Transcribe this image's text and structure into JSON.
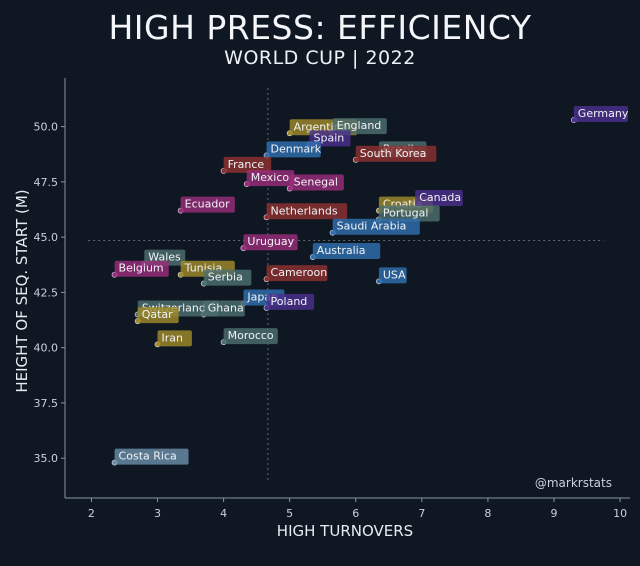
{
  "title": "HIGH PRESS: EFFICIENCY",
  "subtitle": "WORLD CUP | 2022",
  "credit": "@markrstats",
  "chart_data": {
    "type": "scatter",
    "xlabel": "HIGH TURNOVERS",
    "ylabel": "HEIGHT OF SEQ. START (M)",
    "xlim": [
      1.6,
      10.15
    ],
    "ylim": [
      33.2,
      52.2
    ],
    "xticks": [
      2,
      3,
      4,
      5,
      6,
      7,
      8,
      9,
      10
    ],
    "yticks": [
      35.0,
      37.5,
      40.0,
      42.5,
      45.0,
      47.5,
      50.0
    ],
    "ytick_labels": [
      "35.0",
      "37.5",
      "40.0",
      "42.5",
      "45.0",
      "47.5",
      "50.0"
    ],
    "reference_lines": {
      "x": 4.67,
      "y": 44.85
    },
    "grid": false,
    "points": [
      {
        "team": "Germany",
        "x": 9.3,
        "y": 50.3,
        "color": "#4b2f8c"
      },
      {
        "team": "Argentina",
        "x": 5.0,
        "y": 49.7,
        "color": "#a08a2a"
      },
      {
        "team": "England",
        "x": 5.65,
        "y": 49.75,
        "color": "#4d6e6e"
      },
      {
        "team": "Spain",
        "x": 5.3,
        "y": 49.2,
        "color": "#4b2f8c"
      },
      {
        "team": "Denmark",
        "x": 4.65,
        "y": 48.7,
        "color": "#2f6fae"
      },
      {
        "team": "Brazil",
        "x": 6.35,
        "y": 48.7,
        "color": "#4d6e6e"
      },
      {
        "team": "France",
        "x": 4.0,
        "y": 48.0,
        "color": "#8e2f2f"
      },
      {
        "team": "South Korea",
        "x": 6.0,
        "y": 48.5,
        "color": "#8e2f2f"
      },
      {
        "team": "Mexico",
        "x": 4.35,
        "y": 47.4,
        "color": "#9a2d7a"
      },
      {
        "team": "Senegal",
        "x": 5.0,
        "y": 47.2,
        "color": "#9a2d7a"
      },
      {
        "team": "Ecuador",
        "x": 3.35,
        "y": 46.2,
        "color": "#9a2d7a"
      },
      {
        "team": "Croatia",
        "x": 6.35,
        "y": 46.2,
        "color": "#a08a2a"
      },
      {
        "team": "Canada",
        "x": 6.9,
        "y": 46.5,
        "color": "#4b2f8c"
      },
      {
        "team": "Netherlands",
        "x": 4.65,
        "y": 45.9,
        "color": "#8e2f2f"
      },
      {
        "team": "Portugal",
        "x": 6.35,
        "y": 45.8,
        "color": "#4d6e6e"
      },
      {
        "team": "Saudi Arabia",
        "x": 5.65,
        "y": 45.2,
        "color": "#2f6fae"
      },
      {
        "team": "Uruguay",
        "x": 4.3,
        "y": 44.5,
        "color": "#9a2d7a"
      },
      {
        "team": "Australia",
        "x": 5.35,
        "y": 44.1,
        "color": "#2f6fae"
      },
      {
        "team": "Wales",
        "x": 2.8,
        "y": 43.8,
        "color": "#4d6e6e"
      },
      {
        "team": "Belgium",
        "x": 2.35,
        "y": 43.3,
        "color": "#9a2d7a"
      },
      {
        "team": "Tunisia",
        "x": 3.35,
        "y": 43.3,
        "color": "#a08a2a"
      },
      {
        "team": "Serbia",
        "x": 3.7,
        "y": 42.9,
        "color": "#4d6e6e"
      },
      {
        "team": "Cameroon",
        "x": 4.65,
        "y": 43.1,
        "color": "#8e2f2f"
      },
      {
        "team": "USA",
        "x": 6.35,
        "y": 43.0,
        "color": "#2f6fae"
      },
      {
        "team": "Japan",
        "x": 4.3,
        "y": 42.0,
        "color": "#2f6fae"
      },
      {
        "team": "Switzerland",
        "x": 2.7,
        "y": 41.5,
        "color": "#4d6e6e"
      },
      {
        "team": "Ghana",
        "x": 3.7,
        "y": 41.5,
        "color": "#4d6e6e"
      },
      {
        "team": "Poland",
        "x": 4.65,
        "y": 41.8,
        "color": "#4b2f8c"
      },
      {
        "team": "Qatar",
        "x": 2.7,
        "y": 41.2,
        "color": "#a08a2a"
      },
      {
        "team": "Iran",
        "x": 3.0,
        "y": 40.15,
        "color": "#a08a2a"
      },
      {
        "team": "Morocco",
        "x": 4.0,
        "y": 40.25,
        "color": "#4d6e6e"
      },
      {
        "team": "Costa Rica",
        "x": 2.35,
        "y": 34.8,
        "color": "#6a8ea8"
      }
    ]
  }
}
